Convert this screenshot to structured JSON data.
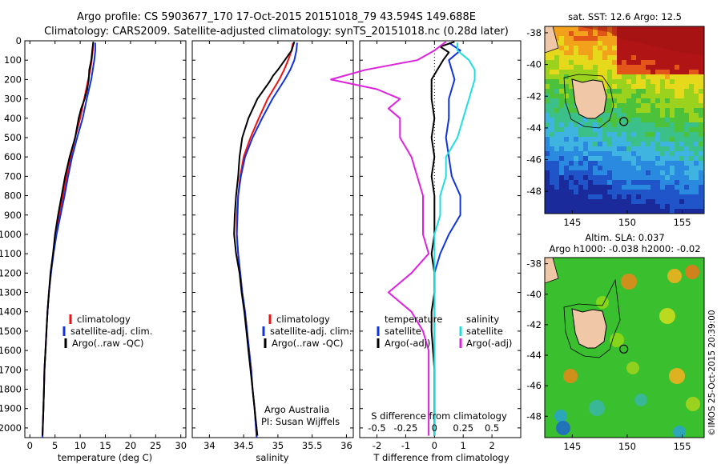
{
  "header": {
    "line1": "Argo profile: CS 5903677_170 17-Oct-2015 20151018_79 43.594S 149.688E",
    "line2": "Climatology: CARS2009. Satellite-adjusted climatology: synTS_20151018.nc (0.28d later)"
  },
  "colors": {
    "climatology": "#ee1111",
    "satellite": "#1133dd",
    "argo": "#000000",
    "sal_satellite": "#22dddd",
    "sal_argo": "#dd22dd"
  },
  "chart_data": [
    {
      "type": "line",
      "id": "temperature",
      "xlabel": "temperature (deg C)",
      "ylabel": "",
      "xlim": [
        -1,
        31
      ],
      "ylim": [
        2050,
        0
      ],
      "xticks": [
        0,
        5,
        10,
        15,
        20,
        25,
        30
      ],
      "yticks": [
        0,
        100,
        200,
        300,
        400,
        500,
        600,
        700,
        800,
        900,
        1000,
        1100,
        1200,
        1300,
        1400,
        1500,
        1600,
        1700,
        1800,
        1900,
        2000
      ],
      "legend": [
        "climatology",
        "satellite-adj. clim.",
        "Argo(..raw -QC)"
      ],
      "series": [
        {
          "name": "climatology",
          "depth": [
            10,
            50,
            100,
            150,
            200,
            300,
            400,
            500,
            600,
            700,
            800,
            900,
            1000,
            1100,
            1200,
            1300,
            1400,
            1500,
            1600,
            1700,
            1800,
            1900,
            2050
          ],
          "values": [
            12.6,
            12.5,
            12.3,
            12.0,
            11.6,
            10.8,
            10.0,
            9.0,
            8.1,
            7.3,
            6.6,
            5.9,
            5.1,
            4.6,
            4.2,
            3.8,
            3.5,
            3.3,
            3.1,
            2.9,
            2.8,
            2.7,
            2.5
          ]
        },
        {
          "name": "satellite",
          "depth": [
            10,
            50,
            100,
            150,
            200,
            300,
            400,
            500,
            600,
            700,
            800,
            900,
            1000,
            1100,
            1200,
            1300,
            1400,
            1500,
            1600,
            1700,
            1800,
            1900,
            2050
          ],
          "values": [
            13.0,
            13.0,
            12.8,
            12.5,
            12.2,
            11.3,
            10.5,
            9.4,
            8.4,
            7.6,
            6.9,
            6.1,
            5.3,
            4.7,
            4.2,
            3.8,
            3.5,
            3.3,
            3.1,
            2.9,
            2.8,
            2.7,
            2.5
          ]
        },
        {
          "name": "argo",
          "depth": [
            5,
            50,
            100,
            150,
            200,
            250,
            300,
            350,
            400,
            500,
            600,
            700,
            800,
            900,
            1000,
            1100,
            1200,
            1300,
            1400,
            1500,
            1600,
            1700,
            1800,
            1900,
            2040
          ],
          "values": [
            12.6,
            12.4,
            12.2,
            11.8,
            11.7,
            11.4,
            10.9,
            10.2,
            9.7,
            9.0,
            7.9,
            7.0,
            6.3,
            5.6,
            5.0,
            4.6,
            4.1,
            3.8,
            3.5,
            3.3,
            3.1,
            2.9,
            2.8,
            2.7,
            2.5
          ]
        }
      ]
    },
    {
      "type": "line",
      "id": "salinity",
      "xlabel": "salinity",
      "xlim": [
        33.75,
        36.1
      ],
      "ylim": [
        2050,
        0
      ],
      "xticks": [
        34,
        34.5,
        35,
        35.5,
        36
      ],
      "legend": [
        "climatology",
        "satellite-adj. clim.",
        "Argo(..raw -QC)"
      ],
      "annotation": [
        "Argo Australia",
        "PI: Susan Wijffels"
      ],
      "series": [
        {
          "name": "climatology",
          "depth": [
            10,
            50,
            100,
            150,
            200,
            300,
            400,
            500,
            600,
            700,
            800,
            900,
            1000,
            1100,
            1200,
            1300,
            1400,
            1500,
            1600,
            1700,
            1800,
            1900,
            2050
          ],
          "values": [
            35.22,
            35.2,
            35.15,
            35.09,
            35.02,
            34.85,
            34.72,
            34.6,
            34.5,
            34.45,
            34.42,
            34.4,
            34.4,
            34.42,
            34.45,
            34.48,
            34.52,
            34.55,
            34.58,
            34.61,
            34.63,
            34.66,
            34.69
          ]
        },
        {
          "name": "satellite",
          "depth": [
            10,
            50,
            100,
            150,
            200,
            300,
            400,
            500,
            600,
            700,
            800,
            900,
            1000,
            1100,
            1200,
            1300,
            1400,
            1500,
            1600,
            1700,
            1800,
            1900,
            2050
          ],
          "values": [
            35.28,
            35.27,
            35.24,
            35.18,
            35.1,
            34.92,
            34.77,
            34.63,
            34.52,
            34.46,
            34.42,
            34.41,
            34.4,
            34.42,
            34.45,
            34.48,
            34.52,
            34.55,
            34.58,
            34.61,
            34.63,
            34.66,
            34.69
          ]
        },
        {
          "name": "argo",
          "depth": [
            5,
            50,
            100,
            150,
            180,
            210,
            250,
            300,
            400,
            500,
            600,
            700,
            800,
            900,
            1000,
            1100,
            1200,
            1300,
            1400,
            1500,
            1600,
            1700,
            1800,
            1900,
            2040
          ],
          "values": [
            35.24,
            35.2,
            35.1,
            35.0,
            34.93,
            34.88,
            34.8,
            34.7,
            34.57,
            34.48,
            34.44,
            34.42,
            34.39,
            34.37,
            34.36,
            34.39,
            34.44,
            34.47,
            34.51,
            34.54,
            34.57,
            34.6,
            34.63,
            34.66,
            34.7
          ]
        }
      ]
    },
    {
      "type": "line",
      "id": "differences",
      "xlabel": "T difference from climatology",
      "x2label": "S difference from climatology",
      "xlim": [
        -2.6,
        3.0
      ],
      "ylim": [
        2050,
        0
      ],
      "xticks": [
        -2,
        -1,
        0,
        1,
        2
      ],
      "x2ticks": [
        "-0.5",
        "-0.25",
        "0",
        "0.25",
        "0.5"
      ],
      "x2tick_positions_T": [
        -2.0,
        -1.0,
        0.0,
        1.0,
        2.0
      ],
      "legend_temperature": [
        "temperature",
        "satellite",
        "Argo(-adj)"
      ],
      "legend_salinity": [
        "salinity",
        "satellite",
        "Argo(-adj)"
      ],
      "series": [
        {
          "name": "T satellite",
          "depth": [
            10,
            50,
            100,
            150,
            200,
            300,
            400,
            500,
            600,
            700,
            800,
            900,
            1000,
            1100,
            1200,
            1300,
            1400,
            1500,
            1700,
            1900,
            2040
          ],
          "values": [
            0.5,
            0.9,
            0.5,
            0.6,
            0.7,
            0.5,
            0.5,
            0.4,
            0.5,
            0.6,
            0.9,
            0.9,
            0.5,
            0.2,
            0.0,
            0.0,
            0.0,
            0.0,
            0.0,
            0.0,
            0.0
          ]
        },
        {
          "name": "T argo",
          "depth": [
            5,
            30,
            60,
            100,
            150,
            200,
            300,
            400,
            500,
            600,
            700,
            800,
            900,
            1000,
            1100,
            1200,
            1300,
            1400,
            1500,
            1700,
            1900,
            2040
          ],
          "values": [
            0.7,
            0.2,
            0.5,
            0.3,
            0.1,
            -0.1,
            -0.1,
            0.0,
            -0.1,
            0.0,
            -0.1,
            0.0,
            0.0,
            0.0,
            -0.1,
            0.0,
            0.0,
            -0.1,
            -0.1,
            0.0,
            0.0,
            0.0
          ]
        },
        {
          "name": "S satellite",
          "depth": [
            10,
            50,
            100,
            150,
            200,
            300,
            400,
            500,
            600,
            700,
            800,
            900,
            1000,
            1100,
            1200,
            1300,
            1400,
            1500,
            1700,
            1900,
            2040
          ],
          "values": [
            0.2,
            0.2,
            0.3,
            0.35,
            0.35,
            0.3,
            0.25,
            0.2,
            0.1,
            0.1,
            0.05,
            0.05,
            0.0,
            0.0,
            0.0,
            0.0,
            0.0,
            0.0,
            0.0,
            0.0,
            0.0
          ]
        },
        {
          "name": "S argo",
          "depth": [
            5,
            50,
            100,
            150,
            200,
            250,
            300,
            350,
            400,
            500,
            600,
            700,
            800,
            900,
            1000,
            1100,
            1200,
            1300,
            1400,
            1500,
            1600,
            1700,
            1800,
            1900,
            2040
          ],
          "values": [
            0.1,
            0.0,
            -0.15,
            -0.6,
            -0.9,
            -0.5,
            -0.3,
            -0.4,
            -0.3,
            -0.3,
            -0.2,
            -0.15,
            -0.1,
            -0.1,
            -0.1,
            -0.05,
            -0.2,
            -0.4,
            -0.2,
            -0.1,
            -0.05,
            -0.05,
            -0.05,
            -0.05,
            -0.05
          ]
        }
      ]
    },
    {
      "type": "heatmap",
      "id": "sst_map",
      "title": "sat. SST: 12.6  Argo: 12.5",
      "xticks": [
        145,
        150,
        155
      ],
      "yticks": [
        -38,
        -40,
        -42,
        -44,
        -46,
        -48
      ],
      "xlim": [
        142.5,
        157.0
      ],
      "ylim": [
        -49.4,
        -37.6
      ],
      "marker": {
        "lon": 149.688,
        "lat": -43.594
      }
    },
    {
      "type": "heatmap",
      "id": "sla_map",
      "title": "Altim. SLA: 0.037",
      "subtitle": "Argo h1000: -0.038 h2000: -0.02",
      "xticks": [
        145,
        150,
        155
      ],
      "yticks": [
        -38,
        -40,
        -42,
        -44,
        -46,
        -48
      ],
      "xlim": [
        142.5,
        157.0
      ],
      "ylim": [
        -49.4,
        -37.6
      ],
      "marker": {
        "lon": 149.688,
        "lat": -43.594
      }
    }
  ],
  "legend_temp": {
    "climatology": "climatology",
    "satellite": "satellite-adj. clim.",
    "argo": "Argo(..raw -QC)"
  },
  "legend_sal": {
    "climatology": "climatology",
    "satellite": "satellite-adj. clim.",
    "argo": "Argo(..raw -QC)"
  },
  "legend_diff": {
    "t_title": "temperature",
    "t_sat": "satellite",
    "t_argo": "Argo(-adj)",
    "s_title": "salinity",
    "s_sat": "satellite",
    "s_argo": "Argo(-adj)"
  },
  "annotation": {
    "line1": "Argo Australia",
    "line2": "PI: Susan Wijffels"
  },
  "axis_labels": {
    "temp": "temperature (deg C)",
    "sal": "salinity",
    "diff": "T difference from climatology",
    "diff_top": "S difference from climatology"
  },
  "maps": {
    "sst_title": "sat. SST: 12.6  Argo: 12.5",
    "sla_title": "Altim. SLA: 0.037",
    "sla_subtitle": "Argo h1000: -0.038 h2000: -0.02"
  },
  "watermark": "©IMOS 25-Oct-2015 20:39:00"
}
